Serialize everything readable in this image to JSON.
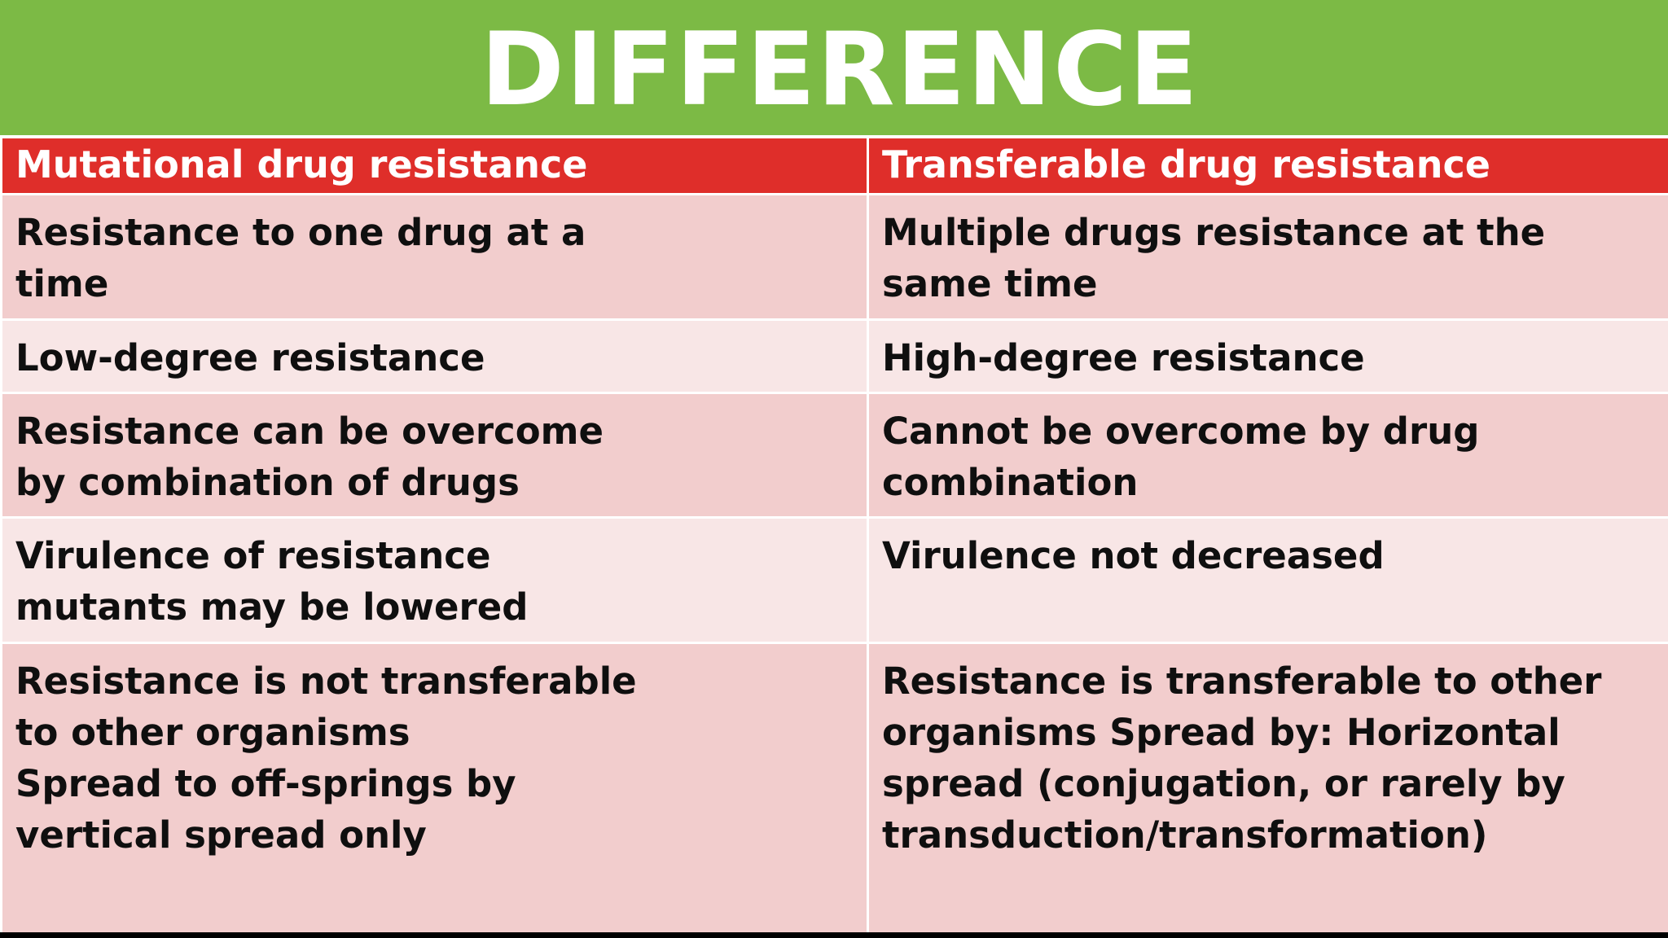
{
  "title": "DIFFERENCE",
  "colors": {
    "title_bar": "#7cba45",
    "header_bar": "#df2e2a",
    "row_dark": "#f2cdcd",
    "row_light": "#f8e6e6"
  },
  "table": {
    "headers": [
      "Mutational drug resistance",
      "Transferable drug resistance"
    ],
    "rows": [
      {
        "mutational": "Resistance to one drug at a\ntime",
        "transferable": "Multiple drugs resistance at the\nsame time"
      },
      {
        "mutational": "Low-degree resistance",
        "transferable": "High-degree resistance"
      },
      {
        "mutational": "Resistance can be overcome\nby combination of drugs",
        "transferable": "Cannot be overcome by drug\ncombination"
      },
      {
        "mutational": "Virulence of resistance\nmutants may be lowered",
        "transferable": "Virulence not decreased"
      },
      {
        "mutational": "Resistance is not transferable\nto other organisms\nSpread to off-springs by\nvertical spread only",
        "transferable": "Resistance is transferable to other\norganisms Spread by: Horizontal\nspread (conjugation, or rarely by\ntransduction/transformation)"
      }
    ]
  }
}
